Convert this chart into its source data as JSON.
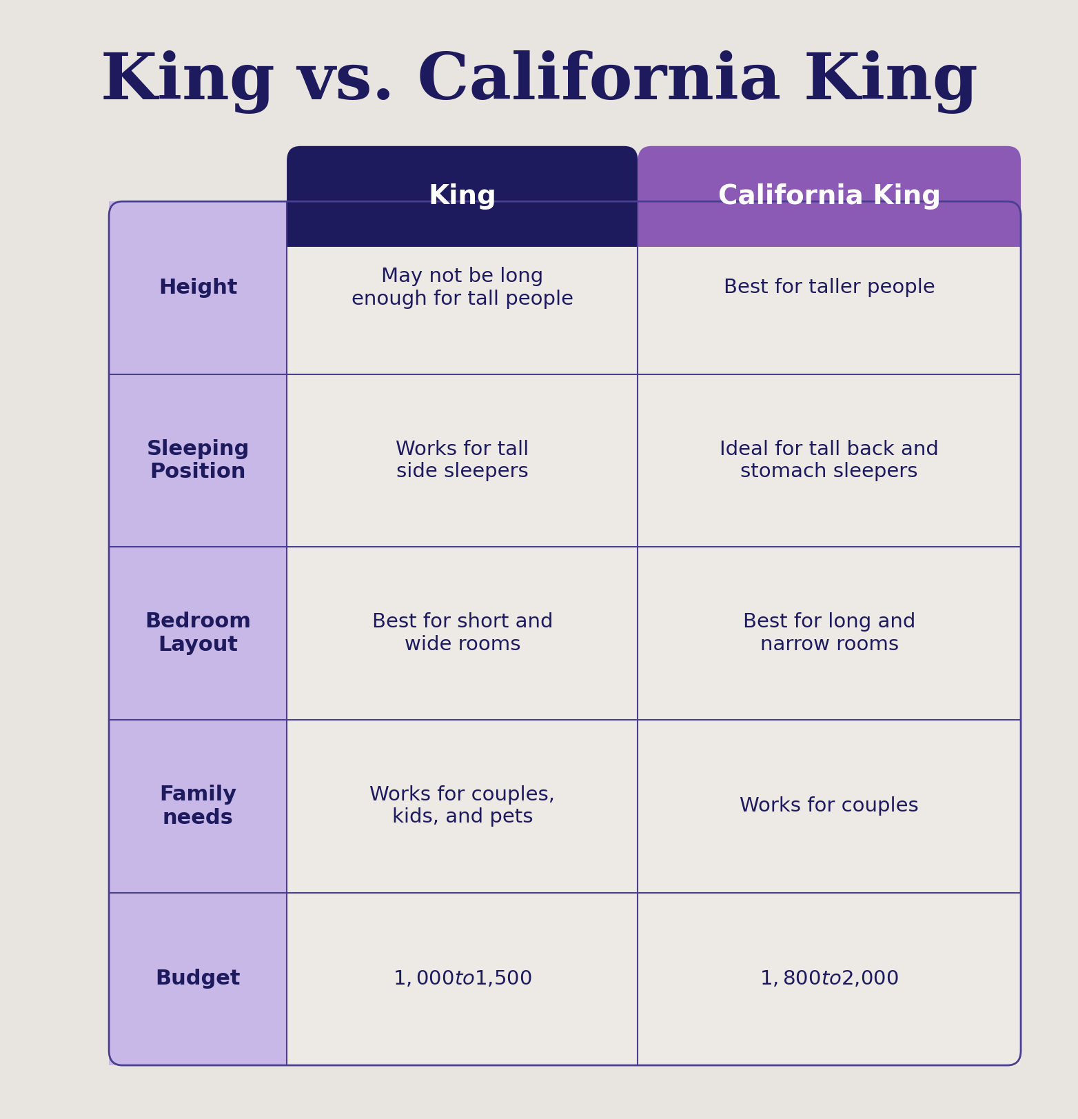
{
  "title": "King vs. California King",
  "title_color": "#1e1a5e",
  "background_color": "#e8e5e0",
  "col1_header": "King",
  "col2_header": "California King",
  "col1_header_bg": "#1e1a5e",
  "col2_header_bg": "#8b5ab5",
  "header_text_color": "#ffffff",
  "row_label_bg": "#c8b8e8",
  "row_label_text_color": "#1e1a5e",
  "cell_bg": "#edeae6",
  "cell_text_color": "#1e1a5e",
  "border_color": "#4a3f8f",
  "rows": [
    {
      "label": "Height",
      "col1": "May not be long\nenough for tall people",
      "col2": "Best for taller people"
    },
    {
      "label": "Sleeping\nPosition",
      "col1": "Works for tall\nside sleepers",
      "col2": "Ideal for tall back and\nstomach sleepers"
    },
    {
      "label": "Bedroom\nLayout",
      "col1": "Best for short and\nwide rooms",
      "col2": "Best for long and\nnarrow rooms"
    },
    {
      "label": "Family\nneeds",
      "col1": "Works for couples,\nkids, and pets",
      "col2": "Works for couples"
    },
    {
      "label": "Budget",
      "col1": "$1,000 to $1,500",
      "col2": "$1,800 to $2,000"
    }
  ],
  "title_fontsize": 68,
  "header_fontsize": 28,
  "label_fontsize": 22,
  "cell_fontsize": 21
}
